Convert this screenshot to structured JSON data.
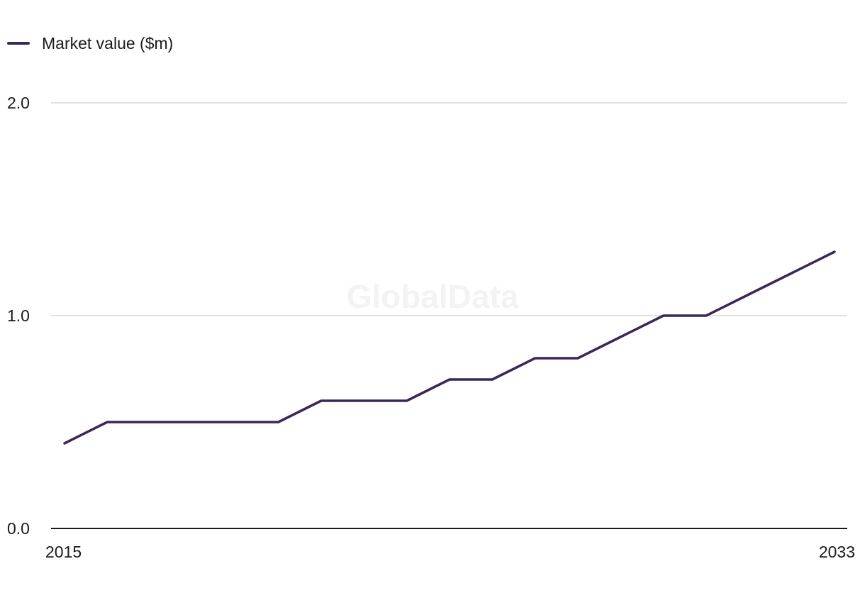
{
  "watermark": "GlobalData",
  "legend": {
    "label": "Market value ($m)",
    "color": "#3a2757"
  },
  "colors": {
    "series": "#3a2757",
    "grid": "#d9d9d9",
    "axis": "#1a1a1a"
  },
  "chart_data": {
    "type": "line",
    "title": "",
    "xlabel": "",
    "ylabel": "",
    "x": [
      2015,
      2016,
      2017,
      2018,
      2019,
      2020,
      2021,
      2022,
      2023,
      2024,
      2025,
      2026,
      2027,
      2028,
      2029,
      2030,
      2031,
      2032,
      2033
    ],
    "series": [
      {
        "name": "Market value ($m)",
        "values": [
          0.4,
          0.5,
          0.5,
          0.5,
          0.5,
          0.5,
          0.6,
          0.6,
          0.6,
          0.7,
          0.7,
          0.8,
          0.8,
          0.9,
          1.0,
          1.0,
          1.1,
          1.2,
          1.3
        ]
      }
    ],
    "ylim": [
      0,
      2
    ],
    "xlim": [
      2015,
      2033
    ],
    "y_ticks": [
      "0.0",
      "1.0",
      "2.0"
    ],
    "x_tick_labels": [
      "2015",
      "2033"
    ],
    "grid": true,
    "legend_position": "top-left"
  }
}
